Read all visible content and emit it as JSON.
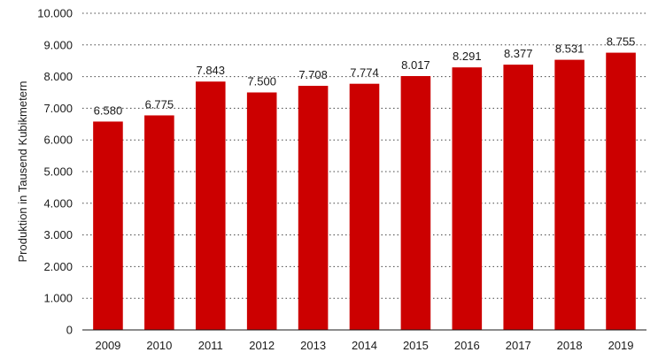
{
  "chart_data": {
    "type": "bar",
    "title": "",
    "xlabel": "",
    "ylabel": "Produktion in Tausend Kubikmetern",
    "categories": [
      "2009",
      "2010",
      "2011",
      "2012",
      "2013",
      "2014",
      "2015",
      "2016",
      "2017",
      "2018",
      "2019"
    ],
    "values": [
      6580,
      6775,
      7843,
      7500,
      7708,
      7774,
      8017,
      8291,
      8377,
      8531,
      8755
    ],
    "value_labels": [
      "6.580",
      "6.775",
      "7.843",
      "7.500",
      "7.708",
      "7.774",
      "8.017",
      "8.291",
      "8.377",
      "8.531",
      "8.755"
    ],
    "ylim": [
      0,
      10000
    ],
    "yticks": [
      0,
      1000,
      2000,
      3000,
      4000,
      5000,
      6000,
      7000,
      8000,
      9000,
      10000
    ],
    "ytick_labels": [
      "0",
      "1.000",
      "2.000",
      "3.000",
      "4.000",
      "5.000",
      "6.000",
      "7.000",
      "8.000",
      "9.000",
      "10.000"
    ],
    "grid": true,
    "bar_color": "#cc0000"
  }
}
